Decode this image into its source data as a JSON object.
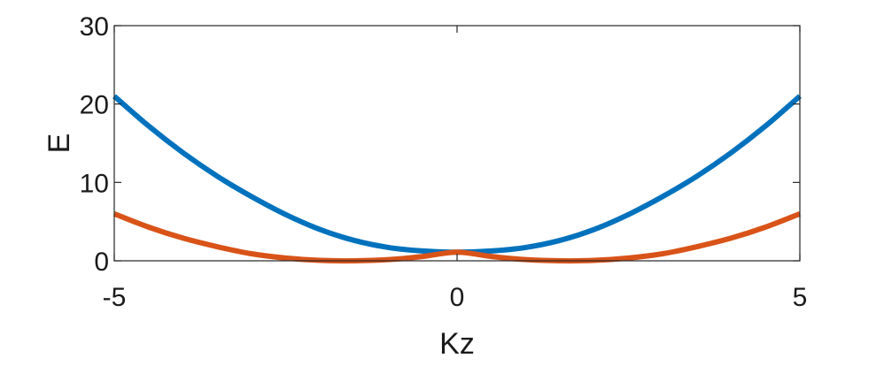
{
  "chart_data": {
    "type": "line",
    "title": "",
    "xlabel": "Kz",
    "ylabel": "E",
    "xlim": [
      -5,
      5
    ],
    "ylim": [
      0,
      30
    ],
    "xticks": [
      -5,
      0,
      5
    ],
    "yticks": [
      0,
      10,
      20,
      30
    ],
    "xtick_labels": [
      "-5",
      "0",
      "5"
    ],
    "ytick_labels": [
      "0",
      "10",
      "20",
      "30"
    ],
    "grid": false,
    "legend": "none",
    "series": [
      {
        "color": "#0072BD",
        "x": [
          -5,
          -4.5,
          -4,
          -3.5,
          -3,
          -2.5,
          -2,
          -1.5,
          -1,
          -0.5,
          0,
          0.5,
          1,
          1.5,
          2,
          2.5,
          3,
          3.5,
          4,
          4.5,
          5
        ],
        "y": [
          21.0,
          17.2,
          13.8,
          10.8,
          8.2,
          5.9,
          4.0,
          2.6,
          1.7,
          1.25,
          1.1,
          1.25,
          1.7,
          2.6,
          4.0,
          5.9,
          8.2,
          10.8,
          13.8,
          17.2,
          21.0
        ]
      },
      {
        "color": "#D95319",
        "x": [
          -5,
          -4.5,
          -4,
          -3.5,
          -3,
          -2.5,
          -2,
          -1.5,
          -1,
          -0.5,
          0,
          0.5,
          1,
          1.5,
          2,
          2.5,
          3,
          3.5,
          4,
          4.5,
          5
        ],
        "y": [
          6.0,
          4.3,
          2.9,
          1.8,
          0.9,
          0.35,
          0.05,
          0.0,
          0.15,
          0.55,
          1.1,
          0.55,
          0.15,
          0.0,
          0.05,
          0.35,
          0.9,
          1.8,
          2.9,
          4.3,
          6.0
        ]
      }
    ]
  }
}
